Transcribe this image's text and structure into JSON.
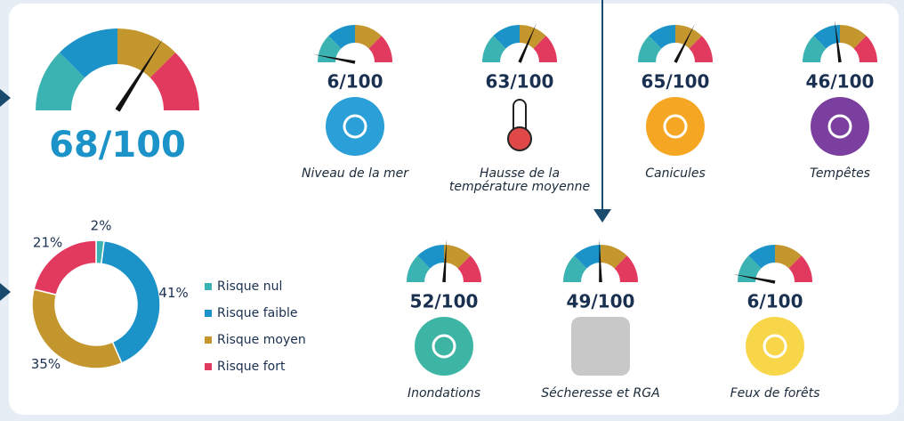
{
  "chart_data": [
    {
      "type": "gauge",
      "values": [
        68
      ],
      "value_labels": [
        "68/100"
      ],
      "ylim": [
        0,
        100
      ]
    },
    {
      "type": "gauge",
      "categories": [
        "Niveau de la mer",
        "Hausse de la température moyenne",
        "Canicules",
        "Tempêtes",
        "Inondations",
        "Sécheresse et RGA",
        "Feux de forêts"
      ],
      "values": [
        6,
        63,
        65,
        46,
        52,
        49,
        6
      ],
      "value_labels": [
        "6/100",
        "63/100",
        "65/100",
        "46/100",
        "52/100",
        "49/100",
        "6/100"
      ],
      "ylim": [
        0,
        100
      ]
    },
    {
      "type": "donut",
      "categories": [
        "Risque nul",
        "Risque faible",
        "Risque moyen",
        "Risque fort"
      ],
      "values": [
        2,
        41,
        35,
        21
      ],
      "value_labels": [
        "2%",
        "41%",
        "35%",
        "21%"
      ],
      "colors": [
        "#3bb3b3",
        "#1b93c8",
        "#c4962e",
        "#e2395e"
      ]
    }
  ]
}
